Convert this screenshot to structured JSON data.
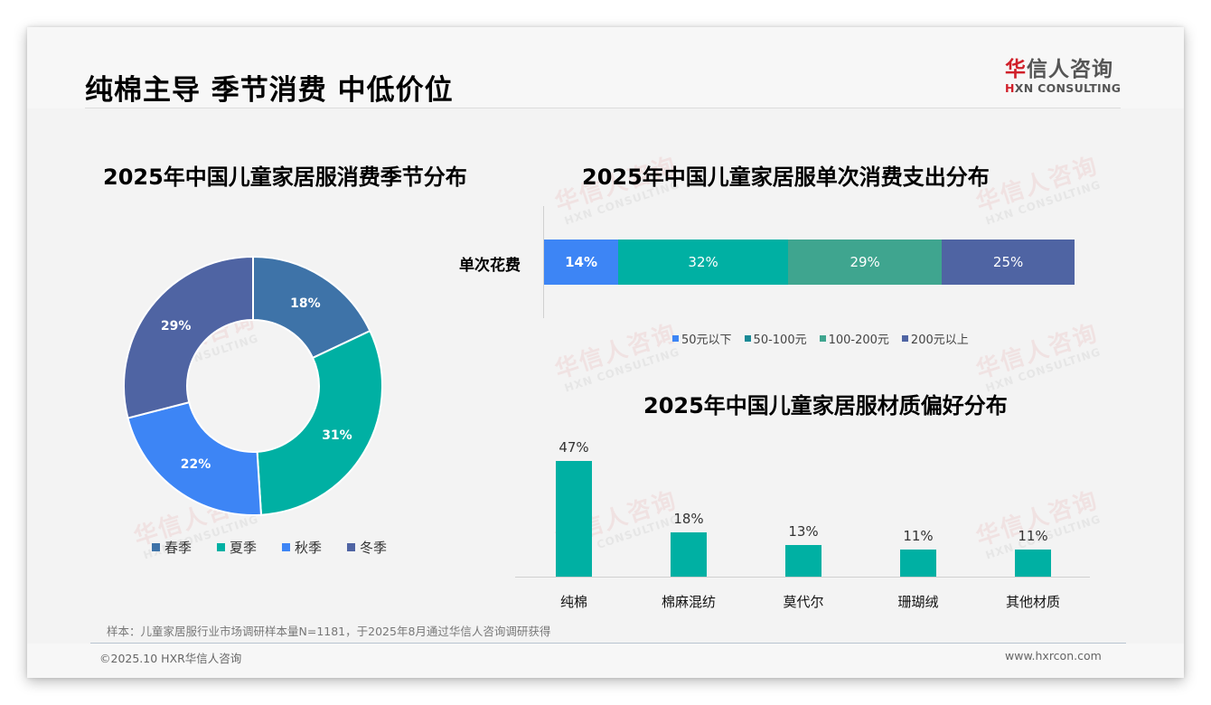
{
  "page": {
    "title": "纯棉主导 季节消费 中低价位",
    "logo": {
      "cn_red": "华",
      "cn_rest": "信人咨询",
      "en_red": "H",
      "en_rest": "XN CONSULTING"
    },
    "watermark": {
      "cn": "华信人咨询",
      "en": "HXN CONSULTING"
    },
    "note": "样本：儿童家居服行业市场调研样本量N=1181，于2025年8月通过华信人咨询调研获得",
    "copyright": "©2025.10 HXR华信人咨询",
    "website": "www.hxrcon.com"
  },
  "colors": {
    "spring": "#3e73a8",
    "summer": "#00b0a3",
    "autumn": "#3d85f5",
    "winter": "#4f64a3",
    "seg_under50": "#3d85f5",
    "seg_50_100": "#00b0a3",
    "seg_100_200": "#3fa58f",
    "seg_over200": "#4f64a3",
    "column": "#00b0a3"
  },
  "chart_data": [
    {
      "type": "pie",
      "variant": "donut",
      "title": "2025年中国儿童家居服消费季节分布",
      "categories": [
        "春季",
        "夏季",
        "秋季",
        "冬季"
      ],
      "values": [
        18,
        31,
        22,
        29
      ],
      "labels": [
        "18%",
        "31%",
        "22%",
        "29%"
      ],
      "legend_position": "bottom"
    },
    {
      "type": "bar",
      "orientation": "horizontal",
      "stacked": true,
      "title": "2025年中国儿童家居服单次消费支出分布",
      "categories": [
        "单次花费"
      ],
      "series": [
        {
          "name": "50元以下",
          "values": [
            14
          ],
          "label": "14%"
        },
        {
          "name": "50-100元",
          "values": [
            32
          ],
          "label": "32%"
        },
        {
          "name": "100-200元",
          "values": [
            29
          ],
          "label": "29%"
        },
        {
          "name": "200元以上",
          "values": [
            25
          ],
          "label": "25%"
        }
      ],
      "legend_position": "bottom"
    },
    {
      "type": "bar",
      "title": "2025年中国儿童家居服材质偏好分布",
      "categories": [
        "纯棉",
        "棉麻混纺",
        "莫代尔",
        "珊瑚绒",
        "其他材质"
      ],
      "values": [
        47,
        18,
        13,
        11,
        11
      ],
      "labels": [
        "47%",
        "18%",
        "13%",
        "11%",
        "11%"
      ],
      "xlabel": "",
      "ylabel": "",
      "grid": false
    }
  ]
}
